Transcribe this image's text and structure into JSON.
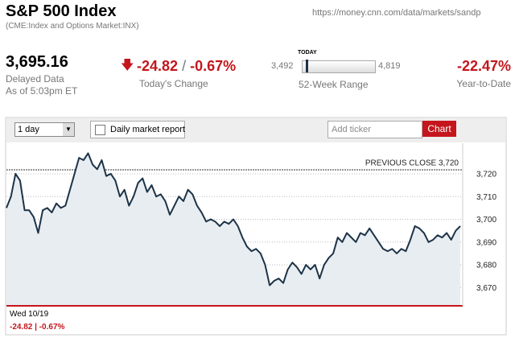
{
  "header": {
    "title": "S&P 500 Index",
    "url": "https://money.cnn.com/data/markets/sandp",
    "subtitle": "(CME:Index and Options Market:INX)"
  },
  "quote": {
    "price": "3,695.16",
    "delayed": "Delayed Data",
    "as_of": "As of 5:03pm ET",
    "change": "-24.82",
    "slash": "/",
    "change_pct": "-0.67%",
    "change_label": "Today's Change",
    "range_low": "3,492",
    "range_high": "4,819",
    "range_today": "TODAY",
    "range_label": "52-Week Range",
    "ytd": "-22.47%",
    "ytd_label": "Year-to-Date"
  },
  "toolbar": {
    "period": "1 day",
    "report": "Daily market report",
    "ticker_placeholder": "Add ticker",
    "button": "Chart"
  },
  "chart_data": {
    "type": "line",
    "color": "#1c3347",
    "values": [
      3705,
      3710,
      3720,
      3717,
      3704,
      3704,
      3701,
      3694,
      3704,
      3705,
      3703,
      3707,
      3705,
      3706,
      3713,
      3720,
      3727,
      3726,
      3729,
      3724,
      3722,
      3726,
      3719,
      3720,
      3717,
      3710,
      3713,
      3706,
      3710,
      3716,
      3718,
      3712,
      3715,
      3710,
      3711,
      3708,
      3702,
      3706,
      3710,
      3708,
      3713,
      3711,
      3706,
      3703,
      3699,
      3700,
      3699,
      3697,
      3699,
      3698,
      3700,
      3697,
      3692,
      3688,
      3686,
      3687,
      3685,
      3680,
      3671,
      3673,
      3674,
      3672,
      3678,
      3681,
      3679,
      3676,
      3680,
      3678,
      3680,
      3674,
      3680,
      3683,
      3685,
      3692,
      3690,
      3694,
      3692,
      3690,
      3694,
      3693,
      3696,
      3693,
      3690,
      3687,
      3686,
      3687,
      3685,
      3687,
      3686,
      3691,
      3697,
      3696,
      3694,
      3690,
      3691,
      3693,
      3692,
      3694,
      3691,
      3695,
      3697
    ],
    "ylim": [
      3662,
      3732
    ],
    "yticks": [
      {
        "value": 3670,
        "label": "3,670"
      },
      {
        "value": 3680,
        "label": "3,680"
      },
      {
        "value": 3690,
        "label": "3,690"
      },
      {
        "value": 3700,
        "label": "3,700"
      },
      {
        "value": 3710,
        "label": "3,710"
      },
      {
        "value": 3720,
        "label": "3,720"
      }
    ],
    "grid": true,
    "previous_close": 3720,
    "previous_close_label": "PREVIOUS CLOSE 3,720",
    "date": "Wed 10/19",
    "footer_change": "-24.82 | -0.67%"
  }
}
